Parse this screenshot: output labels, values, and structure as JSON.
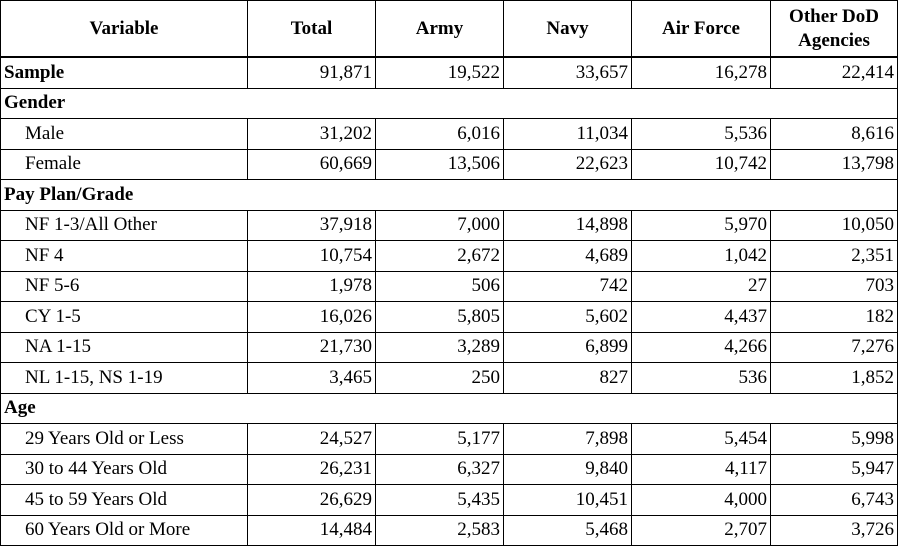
{
  "table": {
    "header": [
      "Variable",
      "Total",
      "Army",
      "Navy",
      "Air Force",
      "Other DoD Agencies"
    ],
    "sample": {
      "label": "Sample",
      "values": [
        "91,871",
        "19,522",
        "33,657",
        "16,278",
        "22,414"
      ]
    },
    "sections": [
      {
        "title": "Gender",
        "rows": [
          {
            "label": "Male",
            "values": [
              "31,202",
              "6,016",
              "11,034",
              "5,536",
              "8,616"
            ]
          },
          {
            "label": "Female",
            "values": [
              "60,669",
              "13,506",
              "22,623",
              "10,742",
              "13,798"
            ]
          }
        ]
      },
      {
        "title": "Pay Plan/Grade",
        "rows": [
          {
            "label": "NF 1-3/All Other",
            "values": [
              "37,918",
              "7,000",
              "14,898",
              "5,970",
              "10,050"
            ]
          },
          {
            "label": "NF 4",
            "values": [
              "10,754",
              "2,672",
              "4,689",
              "1,042",
              "2,351"
            ]
          },
          {
            "label": "NF 5-6",
            "values": [
              "1,978",
              "506",
              "742",
              "27",
              "703"
            ]
          },
          {
            "label": "CY 1-5",
            "values": [
              "16,026",
              "5,805",
              "5,602",
              "4,437",
              "182"
            ]
          },
          {
            "label": "NA 1-15",
            "values": [
              "21,730",
              "3,289",
              "6,899",
              "4,266",
              "7,276"
            ]
          },
          {
            "label": "NL 1-15, NS 1-19",
            "values": [
              "3,465",
              "250",
              "827",
              "536",
              "1,852"
            ]
          }
        ]
      },
      {
        "title": "Age",
        "rows": [
          {
            "label": "29 Years Old or Less",
            "values": [
              "24,527",
              "5,177",
              "7,898",
              "5,454",
              "5,998"
            ]
          },
          {
            "label": "30 to 44 Years Old",
            "values": [
              "26,231",
              "6,327",
              "9,840",
              "4,117",
              "5,947"
            ]
          },
          {
            "label": "45 to 59 Years Old",
            "values": [
              "26,629",
              "5,435",
              "10,451",
              "4,000",
              "6,743"
            ]
          },
          {
            "label": "60 Years Old or More",
            "values": [
              "14,484",
              "2,583",
              "5,468",
              "2,707",
              "3,726"
            ]
          }
        ]
      }
    ]
  }
}
